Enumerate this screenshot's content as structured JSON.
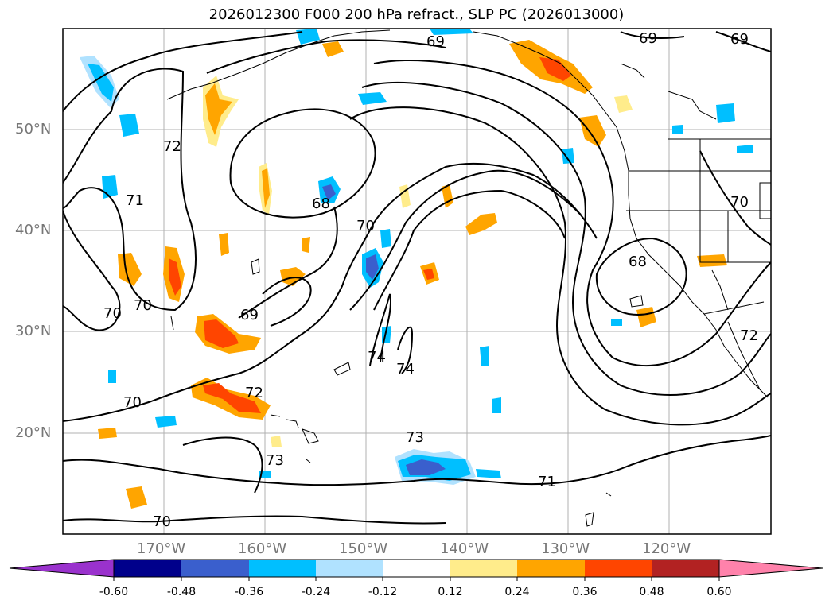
{
  "title": "2026012300 F000 200 hPa refract., SLP PC (2026013000)",
  "map": {
    "projection": "PlateCarree",
    "lon_range": [
      -180,
      -110
    ],
    "lat_range": [
      10,
      60
    ],
    "gridlines": true,
    "lat_labels": [
      "50°N",
      "40°N",
      "30°N",
      "20°N"
    ],
    "lon_labels": [
      "170°W",
      "160°W",
      "150°W",
      "140°W",
      "130°W",
      "120°W"
    ],
    "contour_labels": [
      "69",
      "69",
      "69",
      "72",
      "71",
      "70",
      "70",
      "68",
      "70",
      "69",
      "68",
      "70",
      "74",
      "74",
      "72",
      "70",
      "73",
      "73",
      "71",
      "70",
      "72"
    ]
  },
  "colorbar": {
    "ticks": [
      "-0.60",
      "-0.48",
      "-0.36",
      "-0.24",
      "-0.12",
      "0.12",
      "0.24",
      "0.36",
      "0.48",
      "0.60"
    ],
    "colors": [
      "#9a32cd",
      "#00008b",
      "#3a5fcd",
      "#00bfff",
      "#b0e2ff",
      "#ffffff",
      "#ffec8b",
      "#ffa500",
      "#ff4500",
      "#b22222",
      "#ff82ab"
    ],
    "extend": "both"
  }
}
